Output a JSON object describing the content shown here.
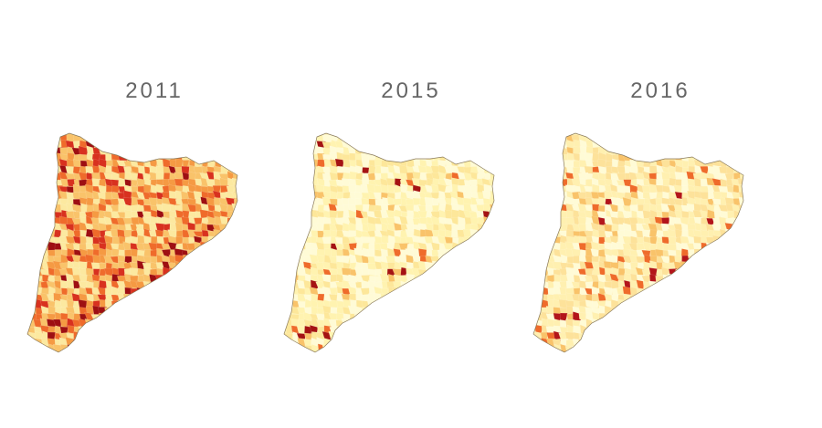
{
  "panels": [
    {
      "year": "2011",
      "palette": [
        "#fce9a0",
        "#f9c36a",
        "#f59a43",
        "#ef6b2b",
        "#d8311f",
        "#9e0f12"
      ],
      "weights": [
        0.3,
        0.3,
        0.16,
        0.14,
        0.07,
        0.03
      ],
      "hotspots": [
        "northwest",
        "southwest",
        "southern-coast"
      ]
    },
    {
      "year": "2015",
      "palette": [
        "#fffbd6",
        "#fff3b0",
        "#fde79a",
        "#f9c36a",
        "#ef6b2b",
        "#a51313"
      ],
      "weights": [
        0.34,
        0.34,
        0.2,
        0.08,
        0.03,
        0.01
      ],
      "hotspots": [
        "southwest",
        "far-north"
      ]
    },
    {
      "year": "2016",
      "palette": [
        "#fffbd6",
        "#fff0b0",
        "#fde29a",
        "#f9c36a",
        "#ef6b2b",
        "#b3151a"
      ],
      "weights": [
        0.28,
        0.32,
        0.22,
        0.12,
        0.05,
        0.01
      ],
      "hotspots": [
        "southwest",
        "far-north",
        "southern-coast"
      ]
    }
  ]
}
